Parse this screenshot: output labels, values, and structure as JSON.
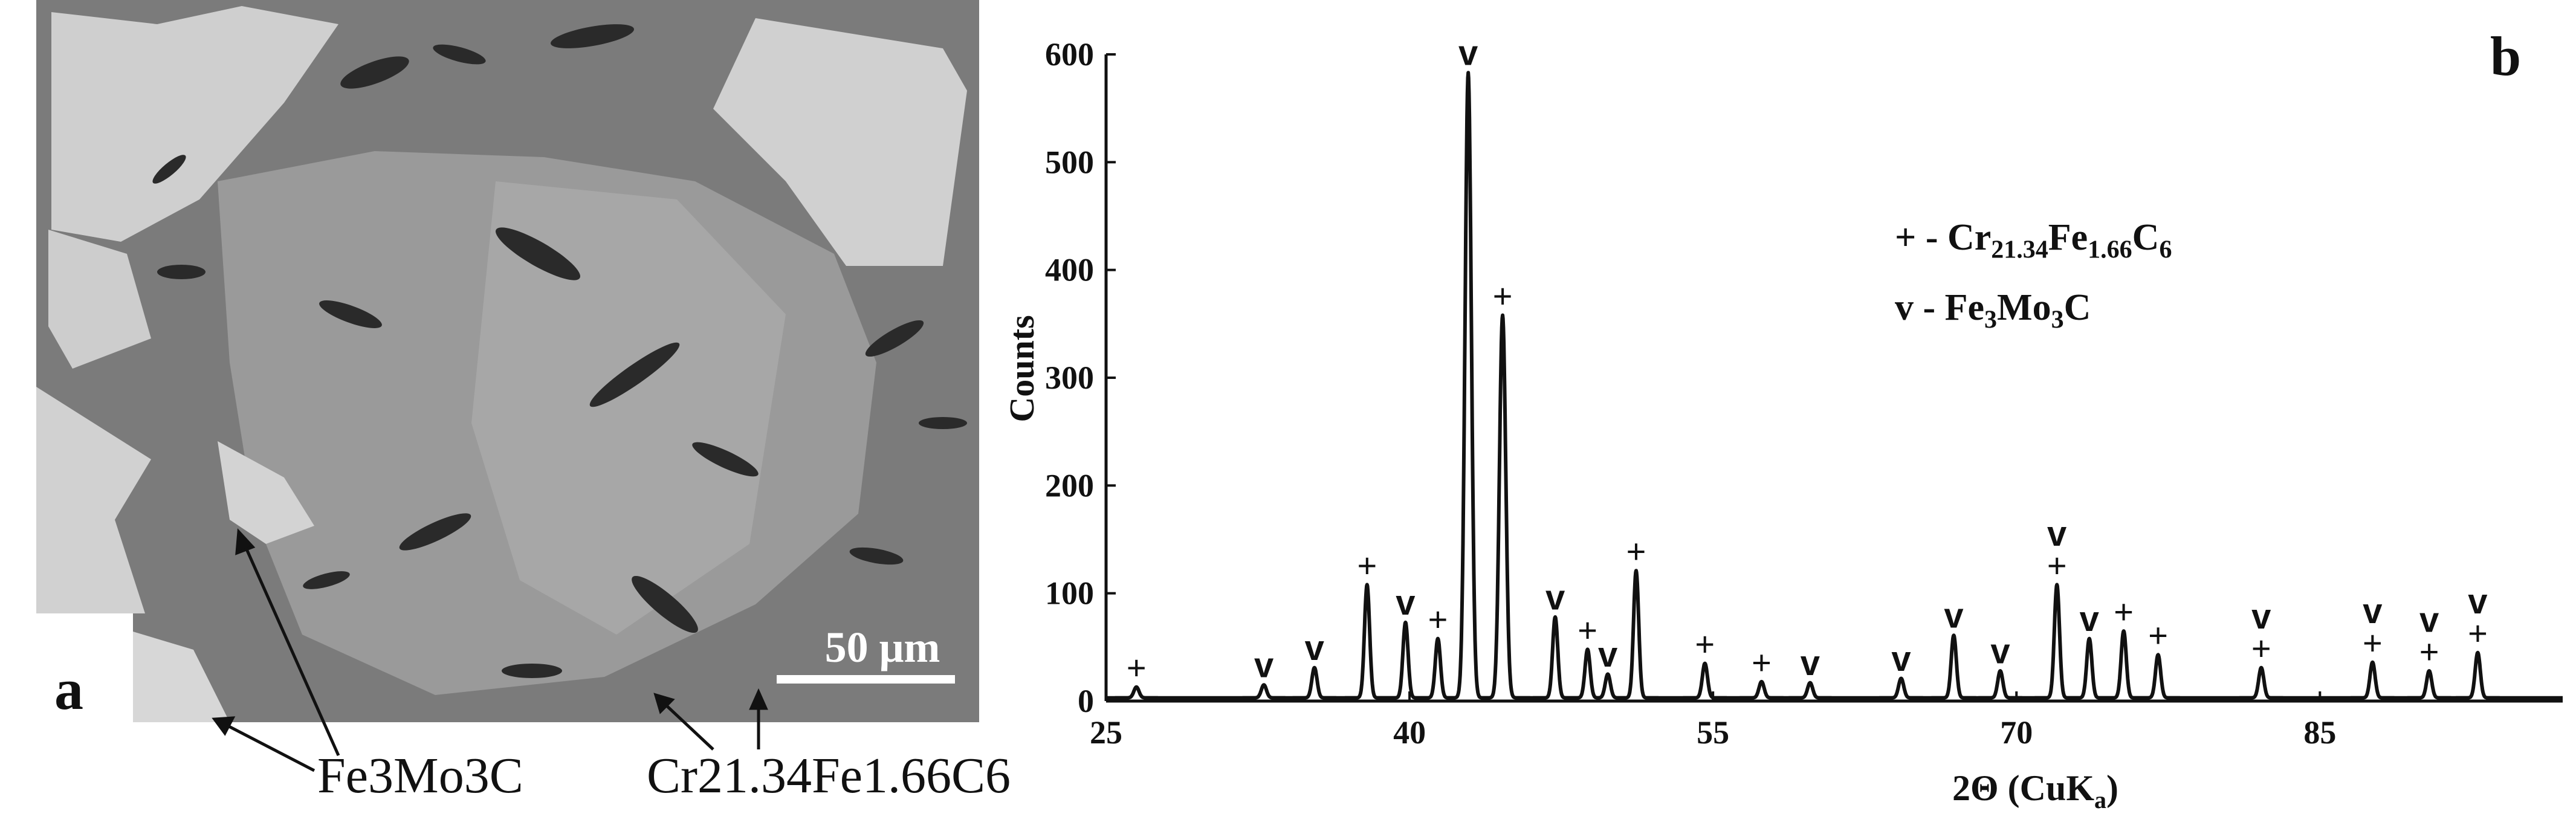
{
  "panel_a": {
    "letter": "a",
    "scale_bar_label": "50 μm",
    "phase_label_1": "Fe3Mo3C",
    "phase_label_2": "Cr21.34Fe1.66C6"
  },
  "panel_b": {
    "letter": "b",
    "legend": {
      "plus_prefix": "+ - Cr",
      "plus_sub1": "21.34",
      "plus_mid": "Fe",
      "plus_sub2": "1.66",
      "plus_end": "C",
      "plus_sub3": "6",
      "v_prefix": "v - Fe",
      "v_sub1": "3",
      "v_mid": "Mo",
      "v_sub2": "3",
      "v_end": "C"
    },
    "xlabel_main": "2Θ (CuK",
    "xlabel_sub": "a",
    "xlabel_close": ")"
  },
  "chart_data": {
    "type": "line",
    "xlabel": "2Θ (CuKa)",
    "ylabel": "Counts",
    "xlim": [
      25,
      97
    ],
    "ylim": [
      0,
      600
    ],
    "xticks": [
      25,
      40,
      55,
      70,
      85
    ],
    "yticks": [
      0,
      100,
      200,
      300,
      400,
      500,
      600
    ],
    "grid": false,
    "legend_placement": "top-right",
    "legend_entries": [
      "+ - Cr21.34Fe1.66C6",
      "v - Fe3Mo3C"
    ],
    "series": [
      {
        "peaks": [
          {
            "x": 26.5,
            "y": 10,
            "marker": "+"
          },
          {
            "x": 32.8,
            "y": 12,
            "marker": "v"
          },
          {
            "x": 35.3,
            "y": 28,
            "marker": "v"
          },
          {
            "x": 37.9,
            "y": 105,
            "marker": "+"
          },
          {
            "x": 39.8,
            "y": 70,
            "marker": "v"
          },
          {
            "x": 41.4,
            "y": 55,
            "marker": "+"
          },
          {
            "x": 42.9,
            "y": 580,
            "marker": "v"
          },
          {
            "x": 44.6,
            "y": 355,
            "marker": "+"
          },
          {
            "x": 47.2,
            "y": 75,
            "marker": "v"
          },
          {
            "x": 48.8,
            "y": 45,
            "marker": "+"
          },
          {
            "x": 49.8,
            "y": 22,
            "marker": "v"
          },
          {
            "x": 51.2,
            "y": 118,
            "marker": "+"
          },
          {
            "x": 54.6,
            "y": 32,
            "marker": "+"
          },
          {
            "x": 57.4,
            "y": 15,
            "marker": "+"
          },
          {
            "x": 59.8,
            "y": 14,
            "marker": "v"
          },
          {
            "x": 64.3,
            "y": 18,
            "marker": "v"
          },
          {
            "x": 66.9,
            "y": 58,
            "marker": "v"
          },
          {
            "x": 69.2,
            "y": 25,
            "marker": "v"
          },
          {
            "x": 72.0,
            "y": 105,
            "marker": "+v"
          },
          {
            "x": 73.6,
            "y": 55,
            "marker": "v"
          },
          {
            "x": 75.3,
            "y": 62,
            "marker": "+"
          },
          {
            "x": 77.0,
            "y": 40,
            "marker": "+"
          },
          {
            "x": 82.1,
            "y": 28,
            "marker": "+v"
          },
          {
            "x": 87.6,
            "y": 33,
            "marker": "+v"
          },
          {
            "x": 90.4,
            "y": 25,
            "marker": "+v"
          },
          {
            "x": 92.8,
            "y": 42,
            "marker": "+v"
          }
        ]
      }
    ]
  }
}
